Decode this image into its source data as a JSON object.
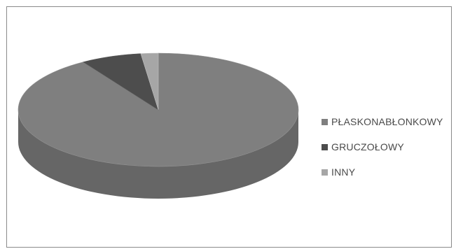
{
  "chart_data": {
    "type": "pie",
    "style": "3d",
    "categories": [
      "PŁASKONABŁONKOWY",
      "GRUCZOŁOWY",
      "INNY"
    ],
    "values": [
      91,
      7,
      2
    ],
    "value_unit": "%",
    "colors": [
      "#7f7f7f",
      "#4d4d4d",
      "#a6a6a6"
    ],
    "title": "",
    "legend": "right"
  },
  "legend": {
    "items": [
      {
        "label": "PŁASKONABŁONKOWY",
        "color": "#7f7f7f"
      },
      {
        "label": "GRUCZOŁOWY",
        "color": "#4d4d4d"
      },
      {
        "label": "INNY",
        "color": "#a6a6a6"
      }
    ]
  }
}
